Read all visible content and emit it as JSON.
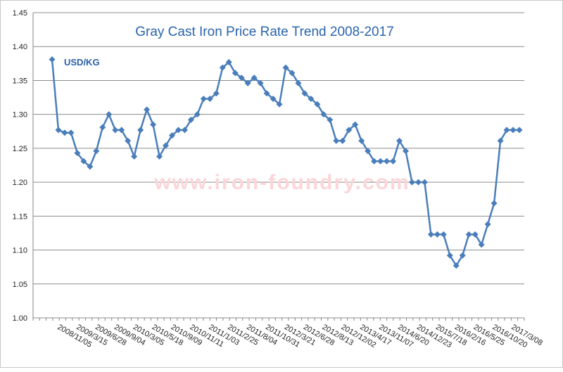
{
  "chart_data": {
    "type": "line",
    "title": "Gray Cast Iron Price Rate Trend 2008-2017",
    "unit_label": "USD/KG",
    "watermark": "www.iron-foundry.com",
    "xlabel": "",
    "ylabel": "",
    "ylim": [
      1.0,
      1.45
    ],
    "yticks": [
      "1.00",
      "1.05",
      "1.10",
      "1.15",
      "1.20",
      "1.25",
      "1.30",
      "1.35",
      "1.40",
      "1.45"
    ],
    "grid": true,
    "legend": "none",
    "x_tick_labels": [
      "2008/11/05",
      "2009/3/15",
      "2009/6/28",
      "2009/9/04",
      "2010/3/05",
      "2010/5/18",
      "2010/9/09",
      "2010/11/11",
      "2011/1/03",
      "2011/2/25",
      "2011/8/04",
      "2011/10/31",
      "2012/3/21",
      "2012/6/28",
      "2012/8/13",
      "2012/12/02",
      "2013/4/17",
      "2013/11/07",
      "2014/6/20",
      "2014/12/23",
      "2015/7/18",
      "2016/2/16",
      "2016/5/25",
      "2016/10/20",
      "2017/3/08"
    ],
    "series": [
      {
        "name": "USD/KG",
        "color": "#4a7ebb",
        "values": [
          1.381,
          1.277,
          1.273,
          1.273,
          1.243,
          1.231,
          1.223,
          1.246,
          1.281,
          1.3,
          1.277,
          1.277,
          1.261,
          1.238,
          1.277,
          1.307,
          1.285,
          1.238,
          1.254,
          1.269,
          1.277,
          1.277,
          1.292,
          1.3,
          1.323,
          1.323,
          1.331,
          1.369,
          1.377,
          1.361,
          1.354,
          1.346,
          1.354,
          1.346,
          1.331,
          1.323,
          1.315,
          1.369,
          1.361,
          1.346,
          1.331,
          1.323,
          1.315,
          1.3,
          1.292,
          1.261,
          1.261,
          1.277,
          1.285,
          1.261,
          1.246,
          1.231,
          1.231,
          1.231,
          1.231,
          1.261,
          1.246,
          1.2,
          1.2,
          1.2,
          1.123,
          1.123,
          1.123,
          1.092,
          1.077,
          1.092,
          1.123,
          1.123,
          1.108,
          1.138,
          1.169,
          1.261,
          1.277,
          1.277,
          1.277
        ]
      }
    ]
  }
}
